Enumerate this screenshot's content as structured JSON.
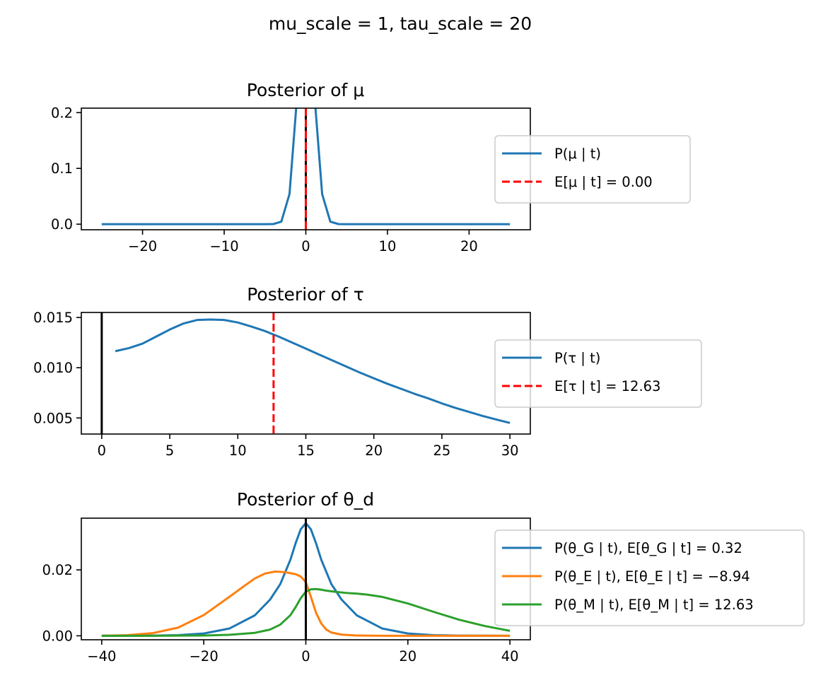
{
  "figure": {
    "suptitle": "mu_scale = 1, tau_scale = 20"
  },
  "chart_data": [
    {
      "type": "line",
      "title": "Posterior of μ",
      "xlabel": "",
      "ylabel": "",
      "xlim": [
        -27.5,
        27.5
      ],
      "ylim": [
        -0.01,
        0.208
      ],
      "x_ticks": [
        -20,
        -10,
        0,
        10,
        20
      ],
      "x_tick_labels": [
        "−20",
        "−10",
        "0",
        "10",
        "20"
      ],
      "y_ticks": [
        0.0,
        0.1,
        0.2
      ],
      "y_tick_labels": [
        "0.0",
        "0.1",
        "0.2"
      ],
      "grid": false,
      "legend_position": "right, outside",
      "legend": [
        "P(μ | t)",
        "E[μ | t] = 0.00"
      ],
      "series": [
        {
          "name": "P(μ | t)",
          "color": "#1f77b4",
          "style": "solid",
          "kind": "normal",
          "mean": 0.0,
          "sd": 1.0,
          "scale": 1.0,
          "x_start": -25,
          "x_end": 25,
          "points": 51
        }
      ],
      "vlines": [
        {
          "x": 0.0,
          "color": "#000000",
          "style": "solid"
        },
        {
          "x": 0.0,
          "color": "#ff0000",
          "style": "dashed"
        }
      ]
    },
    {
      "type": "line",
      "title": "Posterior of τ",
      "xlabel": "",
      "ylabel": "",
      "xlim": [
        -1.5,
        31.5
      ],
      "ylim": [
        0.0034,
        0.0155
      ],
      "x_ticks": [
        0,
        5,
        10,
        15,
        20,
        25,
        30
      ],
      "x_tick_labels": [
        "0",
        "5",
        "10",
        "15",
        "20",
        "25",
        "30"
      ],
      "y_ticks": [
        0.005,
        0.01,
        0.015
      ],
      "y_tick_labels": [
        "0.005",
        "0.010",
        "0.015"
      ],
      "grid": false,
      "legend_position": "right, outside",
      "legend": [
        "P(τ | t)",
        "E[τ | t] = 12.63"
      ],
      "series": [
        {
          "name": "P(τ | t)",
          "color": "#1f77b4",
          "style": "solid",
          "x": [
            1,
            2,
            3,
            4,
            5,
            6,
            7,
            8,
            9,
            10,
            11,
            12,
            13,
            14,
            15,
            16,
            17,
            18,
            19,
            20,
            21,
            22,
            23,
            24,
            25,
            26,
            27,
            28,
            29,
            30
          ],
          "y": [
            0.01165,
            0.01195,
            0.0124,
            0.0131,
            0.0138,
            0.0144,
            0.01475,
            0.0148,
            0.01475,
            0.0145,
            0.0141,
            0.01365,
            0.0131,
            0.0125,
            0.0119,
            0.0113,
            0.0107,
            0.0101,
            0.0095,
            0.00895,
            0.0084,
            0.0079,
            0.0074,
            0.00695,
            0.00645,
            0.006,
            0.0056,
            0.0052,
            0.00485,
            0.0045
          ]
        }
      ],
      "vlines": [
        {
          "x": 0.0,
          "color": "#000000",
          "style": "solid"
        },
        {
          "x": 12.63,
          "color": "#ff0000",
          "style": "dashed"
        }
      ]
    },
    {
      "type": "line",
      "title": "Posterior of θ_d",
      "xlabel": "",
      "ylabel": "",
      "xlim": [
        -44,
        44
      ],
      "ylim": [
        -0.0012,
        0.0357
      ],
      "x_ticks": [
        -40,
        -20,
        0,
        20,
        40
      ],
      "x_tick_labels": [
        "−40",
        "−20",
        "0",
        "20",
        "40"
      ],
      "y_ticks": [
        0.0,
        0.02
      ],
      "y_tick_labels": [
        "0.00",
        "0.02"
      ],
      "grid": false,
      "legend_position": "right, outside",
      "legend": [
        "P(θ_G | t),  E[θ_G | t] = 0.32",
        "P(θ_E | t),  E[θ_E | t] = −8.94",
        "P(θ_M | t),  E[θ_M | t] = 12.63"
      ],
      "series": [
        {
          "name": "P(θ_G | t),  E[θ_G | t] = 0.32",
          "color": "#1f77b4",
          "style": "solid",
          "x": [
            -40,
            -30,
            -25,
            -20,
            -15,
            -10,
            -7,
            -5,
            -3,
            -2,
            -1,
            0,
            1,
            2,
            3,
            5,
            7,
            10,
            15,
            20,
            25,
            30,
            40
          ],
          "y": [
            0.0,
            5e-05,
            0.0002,
            0.0007,
            0.0022,
            0.0062,
            0.011,
            0.0157,
            0.0232,
            0.0281,
            0.0323,
            0.0342,
            0.0323,
            0.0281,
            0.0232,
            0.0157,
            0.011,
            0.0062,
            0.0022,
            0.0007,
            0.0002,
            5e-05,
            0.0
          ]
        },
        {
          "name": "P(θ_E | t),  E[θ_E | t] = −8.94",
          "color": "#ff7f0e",
          "style": "solid",
          "x": [
            -40,
            -35,
            -30,
            -25,
            -20,
            -15,
            -12,
            -10,
            -8,
            -6,
            -4,
            -3,
            -2,
            -1,
            0,
            1,
            2,
            3,
            4,
            5,
            7,
            10,
            15,
            20,
            25,
            30,
            40
          ],
          "y": [
            0.0,
            0.0002,
            0.0008,
            0.0025,
            0.0063,
            0.0118,
            0.0152,
            0.0174,
            0.0189,
            0.0195,
            0.0193,
            0.019,
            0.0187,
            0.018,
            0.0163,
            0.0118,
            0.007,
            0.0038,
            0.0019,
            0.001,
            0.00035,
            0.0001,
            0.0,
            0.0,
            0.0,
            0.0,
            0.0
          ]
        },
        {
          "name": "P(θ_M | t),  E[θ_M | t] = 12.63",
          "color": "#2ca02c",
          "style": "solid",
          "x": [
            -40,
            -30,
            -20,
            -15,
            -10,
            -7,
            -5,
            -3,
            -2,
            -1,
            0,
            1,
            2,
            3,
            4,
            6,
            8,
            10,
            12,
            15,
            20,
            25,
            30,
            35,
            40
          ],
          "y": [
            0.0,
            0.0,
            0.0001,
            0.0003,
            0.0009,
            0.0019,
            0.0034,
            0.0063,
            0.0087,
            0.0114,
            0.0134,
            0.0141,
            0.0142,
            0.014,
            0.0137,
            0.0133,
            0.013,
            0.0128,
            0.0125,
            0.0118,
            0.0098,
            0.0073,
            0.0049,
            0.003,
            0.0015
          ]
        }
      ],
      "vlines": [
        {
          "x": 0.0,
          "color": "#000000",
          "style": "solid"
        }
      ]
    }
  ]
}
